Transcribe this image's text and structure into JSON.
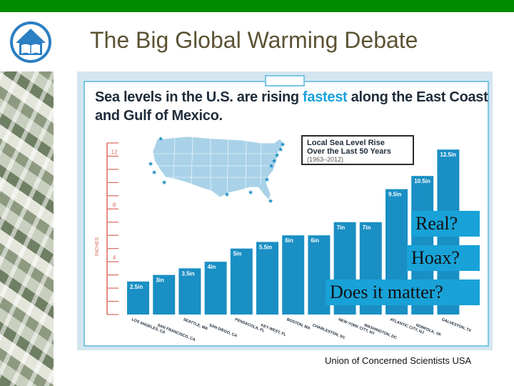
{
  "slide": {
    "title": "The Big Global Warming Debate",
    "source": "Union of Concerned Scientists USA",
    "colors": {
      "topbar": "#008a00",
      "title": "#5b5233",
      "accent": "#1aa0dc",
      "overlay": "#18a2d8"
    }
  },
  "overlays": {
    "real": "Real?",
    "hoax": "Hoax?",
    "matter": "Does it matter?"
  },
  "chart_data": {
    "type": "bar",
    "title_line1_prefix": "Sea levels in the U.S. are rising ",
    "title_highlight": "fastest",
    "title_line1_suffix": " along the East Coast",
    "title_line2": "and Gulf of Mexico.",
    "legend_title_line1": "Local Sea Level Rise",
    "legend_title_line2": "Over the Last 50 Years",
    "legend_subtitle": "(1963–2012)",
    "ylabel": "INCHES",
    "ylim": [
      0,
      13
    ],
    "yticks": [
      {
        "value": 4,
        "label": "4"
      },
      {
        "value": 8,
        "label": "8"
      },
      {
        "value": 12,
        "label": "12"
      }
    ],
    "categories": [
      "LOS ANGELES, CA",
      "SAN FRANCISCO, CA",
      "SEATTLE, WA",
      "SAN DIEGO, CA",
      "PENSACOLA, FL",
      "KEY WEST, FL",
      "BOSTON, MA",
      "CHARLESTON, SC",
      "NEW YORK CITY, NY",
      "WASHINGTON, DC",
      "ATLANTIC CITY, NJ",
      "NORFOLK, VA",
      "GALVESTON, TX"
    ],
    "values": [
      2.5,
      3,
      3.5,
      4,
      5,
      5.5,
      6,
      6,
      7,
      7,
      9.5,
      10.5,
      12.5
    ],
    "value_labels": [
      "2.5in",
      "3in",
      "3.5in",
      "4in",
      "5in",
      "5.5in",
      "6in",
      "6in",
      "7in",
      "7in",
      "9.5in",
      "10.5in",
      "12.5in"
    ],
    "bar_color": "#1a8fc4",
    "map_icon": "us-map-icon",
    "star_icon": "star-icon"
  }
}
